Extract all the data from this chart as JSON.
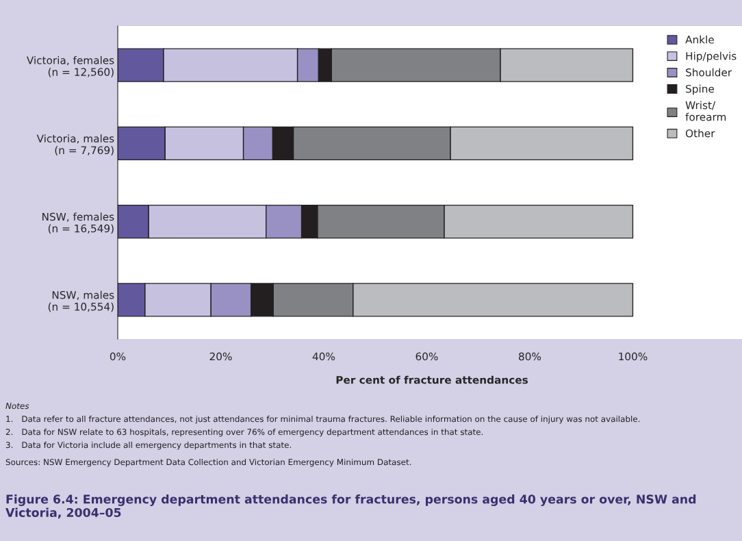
{
  "chart_data": {
    "type": "bar",
    "orientation": "horizontal",
    "stacked": true,
    "title": "Figure 6.4: Emergency department attendances for fractures, persons aged 40 years or over, NSW and Victoria, 2004–05",
    "xlabel": "Per cent of fracture attendances",
    "categories": [
      "Victoria, females\n(n = 12,560)",
      "Victoria, males\n(n = 7,769)",
      "NSW, females\n(n = 16,549)",
      "NSW, males\n(n = 10,554)"
    ],
    "series": [
      {
        "name": "Ankle",
        "color": "#62589e",
        "values": [
          8.9,
          9.2,
          6.0,
          5.3
        ]
      },
      {
        "name": "Hip/pelvis",
        "color": "#c5c1df",
        "values": [
          26.0,
          15.2,
          22.8,
          12.8
        ]
      },
      {
        "name": "Shoulder",
        "color": "#9990c3",
        "values": [
          4.1,
          5.7,
          6.9,
          7.8
        ]
      },
      {
        "name": "Spine",
        "color": "#231f20",
        "values": [
          2.5,
          4.0,
          3.1,
          4.3
        ]
      },
      {
        "name": "Wrist/\nforearm",
        "color": "#808184",
        "values": [
          32.8,
          30.5,
          24.6,
          15.5
        ]
      },
      {
        "name": "Other",
        "color": "#bbbcc0",
        "values": [
          25.7,
          35.4,
          36.6,
          54.3
        ]
      }
    ],
    "xlim": [
      0,
      122
    ],
    "xticks": [
      {
        "value": 0,
        "label": "0%"
      },
      {
        "value": 20,
        "label": "20%"
      },
      {
        "value": 40,
        "label": "40%"
      },
      {
        "value": 60,
        "label": "60%"
      },
      {
        "value": 80,
        "label": "80%"
      },
      {
        "value": 100,
        "label": "100%"
      }
    ],
    "legend": "top right",
    "grid": false,
    "annotations": [
      "Notes",
      "1. Data refer to all fracture attendances, not just attendances for minimal trauma fractures. Reliable information on the cause of injury was not available.",
      "2. Data for NSW relate to 63 hospitals, representing over 76% of emergency department attendances in that state.",
      "3. Data for Victoria include all emergency departments in that state.",
      "Sources: NSW Emergency Department Data Collection and Victorian Emergency Minimum Dataset."
    ]
  }
}
